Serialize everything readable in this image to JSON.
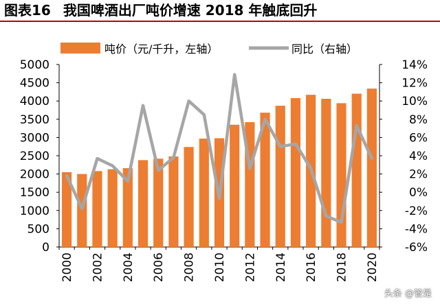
{
  "header": {
    "figure_label": "图表16",
    "title": "我国啤酒出厂吨价增速 2018 年触底回升"
  },
  "watermark": "头条 @管是",
  "colors": {
    "bar": "#ed7d31",
    "line": "#a6a6a6",
    "title_rule": "#c00000"
  },
  "chart_data": {
    "type": "bar",
    "x": [
      "2000",
      "2001",
      "2002",
      "2003",
      "2004",
      "2005",
      "2006",
      "2007",
      "2008",
      "2009",
      "2010",
      "2011",
      "2012",
      "2013",
      "2014",
      "2015",
      "2016",
      "2017",
      "2018",
      "2019",
      "2020"
    ],
    "x_tick_labels": [
      "2000",
      "2002",
      "2004",
      "2006",
      "2008",
      "2010",
      "2012",
      "2014",
      "2016",
      "2018",
      "2020"
    ],
    "series": [
      {
        "name": "吨价（元/千升，左轴）",
        "type": "bar",
        "axis": "left",
        "values": [
          2050,
          2000,
          2080,
          2130,
          2160,
          2380,
          2420,
          2480,
          2740,
          2970,
          2980,
          3350,
          3420,
          3680,
          3870,
          4080,
          4170,
          4060,
          3940,
          4200,
          4340
        ]
      },
      {
        "name": "同比（右轴）",
        "type": "line",
        "axis": "right",
        "values": [
          1.8,
          -1.8,
          3.7,
          2.9,
          1.2,
          9.5,
          2.4,
          3.8,
          10.0,
          8.5,
          -0.7,
          12.9,
          2.6,
          8.0,
          5.0,
          5.3,
          2.6,
          -2.6,
          -3.3,
          7.3,
          3.7
        ]
      }
    ],
    "left_axis": {
      "min": 0,
      "max": 5000,
      "step": 500,
      "tick_labels": [
        "0",
        "500",
        "1000",
        "1500",
        "2000",
        "2500",
        "3000",
        "3500",
        "4000",
        "4500",
        "5000"
      ]
    },
    "right_axis": {
      "min": -6,
      "max": 14,
      "step": 2,
      "tick_labels": [
        "-6%",
        "-4%",
        "-2%",
        "0%",
        "2%",
        "4%",
        "6%",
        "8%",
        "10%",
        "12%",
        "14%"
      ]
    },
    "grid": false,
    "legend_position": "top"
  }
}
